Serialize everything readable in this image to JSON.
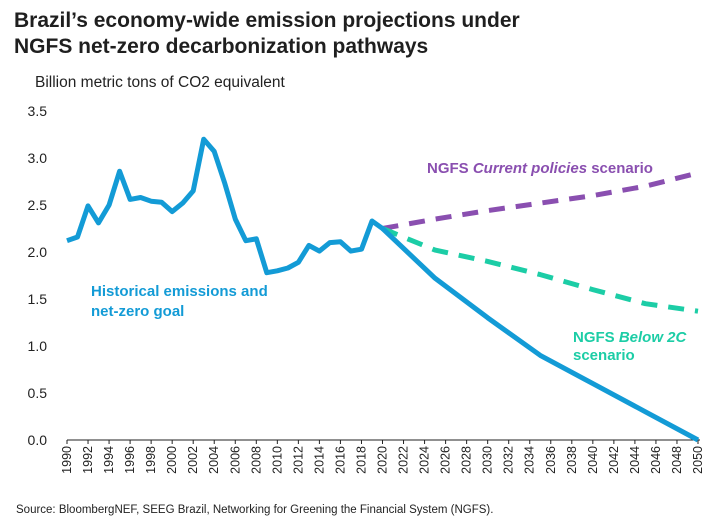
{
  "title_line1": "Brazil’s economy-wide emission projections under",
  "title_line2": "NGFS net-zero decarbonization pathways",
  "source": "Source: BloombergNEF, SEEG Brazil, Networking for Greening the Financial System (NGFS).",
  "chart_data": {
    "type": "line",
    "title": "Brazil’s economy-wide emission projections under NGFS net-zero decarbonization pathways",
    "ylabel": "Billion metric tons of CO2 equivalent",
    "xlabel": "",
    "xlim": [
      1990,
      2050
    ],
    "ylim": [
      0,
      3.5
    ],
    "yticks": [
      "0.0",
      "0.5",
      "1.0",
      "1.5",
      "2.0",
      "2.5",
      "3.0",
      "3.5"
    ],
    "xticks": [
      "1990",
      "1992",
      "1994",
      "1996",
      "1998",
      "2000",
      "2002",
      "2004",
      "2006",
      "2008",
      "2010",
      "2012",
      "2014",
      "2016",
      "2018",
      "2020",
      "2022",
      "2024",
      "2026",
      "2028",
      "2030",
      "2032",
      "2034",
      "2036",
      "2038",
      "2040",
      "2042",
      "2044",
      "2046",
      "2048",
      "2050"
    ],
    "grid": false,
    "series": [
      {
        "name": "Historical emissions and net-zero goal",
        "label_line1": "Historical emissions and",
        "label_line2": "net-zero goal",
        "color": "#139bd6",
        "style": "solid",
        "x": [
          1990,
          1991,
          1992,
          1993,
          1994,
          1995,
          1996,
          1997,
          1998,
          1999,
          2000,
          2001,
          2002,
          2003,
          2004,
          2005,
          2006,
          2007,
          2008,
          2009,
          2010,
          2011,
          2012,
          2013,
          2014,
          2015,
          2016,
          2017,
          2018,
          2019,
          2020,
          2025,
          2030,
          2035,
          2040,
          2045,
          2050
        ],
        "values": [
          2.12,
          2.16,
          2.49,
          2.31,
          2.5,
          2.86,
          2.56,
          2.58,
          2.54,
          2.53,
          2.43,
          2.52,
          2.65,
          3.2,
          3.07,
          2.73,
          2.35,
          2.12,
          2.14,
          1.78,
          1.8,
          1.83,
          1.89,
          2.07,
          2.01,
          2.1,
          2.11,
          2.01,
          2.03,
          2.33,
          2.25,
          1.72,
          1.3,
          0.9,
          0.6,
          0.3,
          0.0
        ]
      },
      {
        "name": "NGFS Current policies scenario",
        "label_prefix": "NGFS ",
        "label_italic": "Current policies",
        "label_suffix": " scenario",
        "color": "#8a4fb0",
        "style": "dashed",
        "x": [
          2020,
          2025,
          2030,
          2035,
          2040,
          2045,
          2050
        ],
        "values": [
          2.25,
          2.35,
          2.44,
          2.52,
          2.6,
          2.7,
          2.84
        ]
      },
      {
        "name": "NGFS Below 2C scenario",
        "label_prefix": "NGFS ",
        "label_italic": "Below 2C",
        "label_line2": "scenario",
        "color": "#1ccda6",
        "style": "dashed",
        "x": [
          2020,
          2025,
          2030,
          2035,
          2040,
          2045,
          2050
        ],
        "values": [
          2.25,
          2.02,
          1.9,
          1.76,
          1.6,
          1.45,
          1.37
        ]
      }
    ]
  }
}
